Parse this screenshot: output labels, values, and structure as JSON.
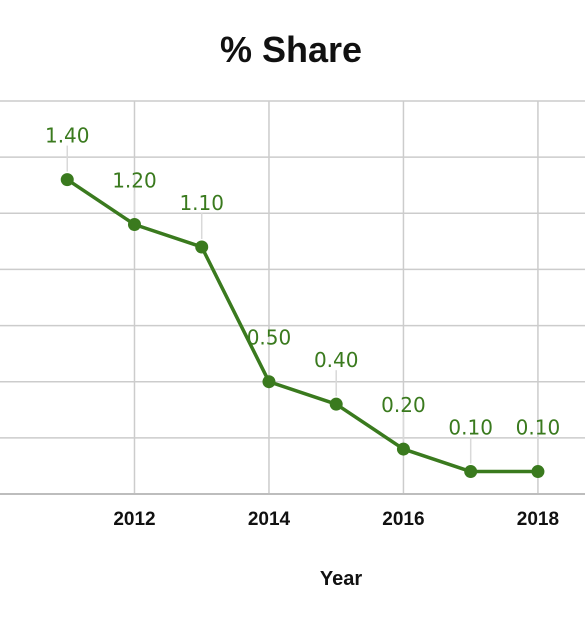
{
  "chart_data": {
    "type": "line",
    "title": "% Share",
    "xlabel": "Year",
    "ylabel": "",
    "x": [
      2011,
      2012,
      2013,
      2014,
      2015,
      2016,
      2017,
      2018
    ],
    "series": [
      {
        "values": [
          1.4,
          1.2,
          1.1,
          0.5,
          0.4,
          0.2,
          0.1,
          0.1
        ],
        "labels": [
          "1.40",
          "1.20",
          "1.10",
          "0.50",
          "0.40",
          "0.20",
          "0.10",
          "0.10"
        ]
      }
    ],
    "x_ticks": [
      "2012",
      "2014",
      "2016",
      "2018"
    ],
    "xlim": [
      2010,
      2018.7
    ],
    "ylim": [
      0,
      1.75
    ],
    "grid": true,
    "legend": "none",
    "line_color": "#3a7a1e",
    "label_color": "#3a7a1e"
  }
}
